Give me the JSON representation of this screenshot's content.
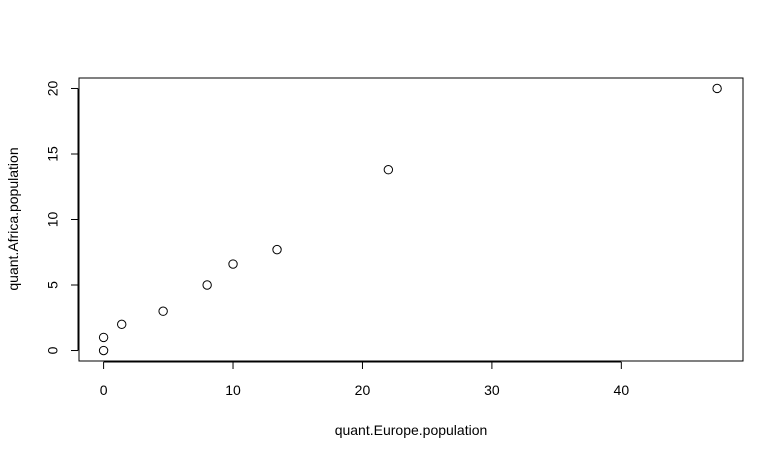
{
  "chart_data": {
    "type": "scatter",
    "title": "",
    "xlabel": "quant.Europe.population",
    "ylabel": "quant.Africa.population",
    "xlim": [
      -1.9,
      49.4
    ],
    "ylim": [
      -0.8,
      20.8
    ],
    "x_ticks": [
      0,
      10,
      20,
      30,
      40
    ],
    "y_ticks": [
      0,
      5,
      10,
      15,
      20
    ],
    "grid": false,
    "legend": "none",
    "point_style": "open-circle",
    "colors": {
      "points": "#000000",
      "axes": "#000000",
      "background": "#ffffff"
    },
    "series": [
      {
        "x": [
          0,
          0,
          1.4,
          4.6,
          8.0,
          10.0,
          13.4,
          22.0,
          47.4
        ],
        "y": [
          0,
          1.0,
          2.0,
          3.0,
          5.0,
          6.6,
          7.7,
          13.8,
          20.0
        ]
      }
    ]
  }
}
